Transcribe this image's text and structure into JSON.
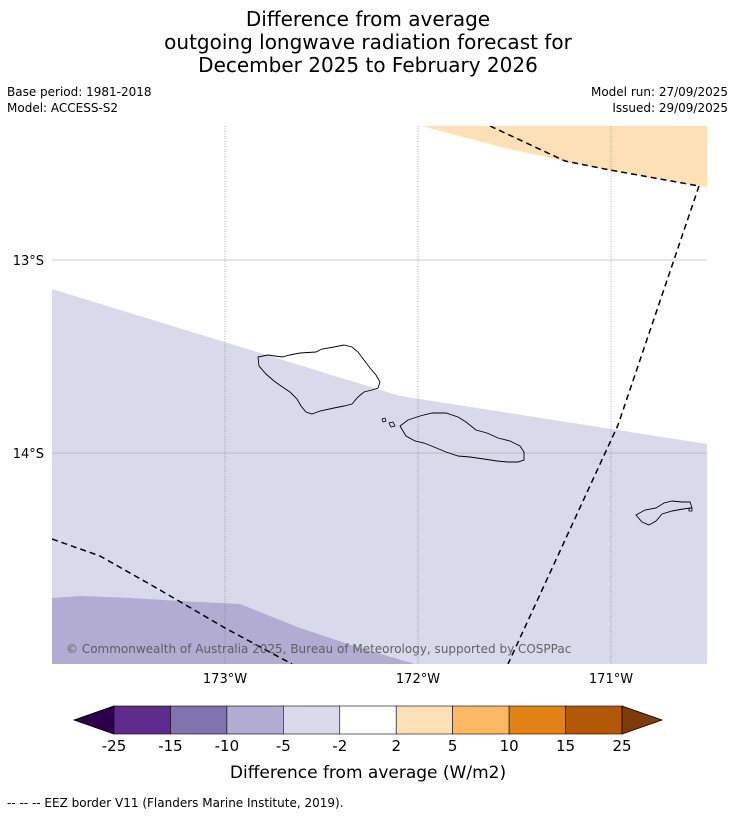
{
  "title": {
    "line1": "Difference from average",
    "line2": "outgoing longwave radiation forecast for",
    "line3": "December 2025 to February 2026"
  },
  "meta": {
    "base_period": "Base period: 1981-2018",
    "model": "Model: ACCESS-S2",
    "model_run": "Model run: 27/09/2025",
    "issued": "Issued: 29/09/2025"
  },
  "map": {
    "lat_labels": [
      "13°S",
      "14°S"
    ],
    "lon_labels": [
      "173°W",
      "172°W",
      "171°W"
    ],
    "copyright": "© Commonwealth of Australia 2025, Bureau of Meteorology, supported by COSPPac"
  },
  "colorbar": {
    "ticks": [
      "-25",
      "-15",
      "-10",
      "-5",
      "-2",
      "2",
      "5",
      "10",
      "15",
      "25"
    ],
    "colors": [
      "#2d004b",
      "#5e2a8c",
      "#8173b0",
      "#b2abd2",
      "#d8daeb",
      "#ffffff",
      "#fee0b6",
      "#fdb863",
      "#e08214",
      "#b35806",
      "#7f3b08"
    ],
    "label": "Difference from average (W/m2)"
  },
  "footer": {
    "legend": "--  --  -- EEZ border V11 (Flanders Marine Institute, 2019)."
  }
}
